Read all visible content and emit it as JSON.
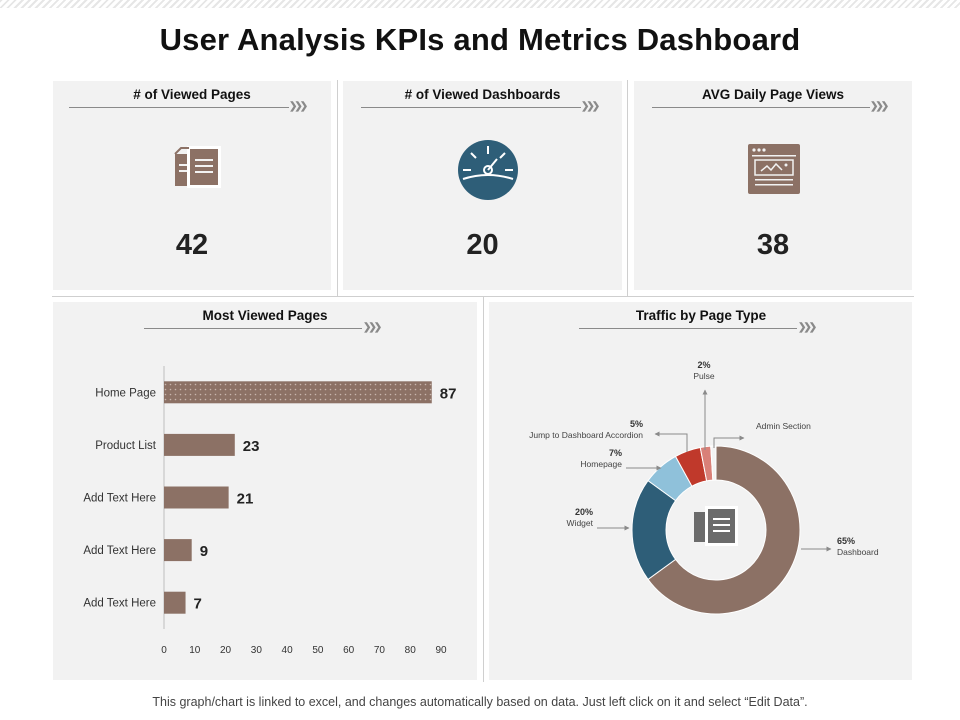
{
  "header": {
    "title": "User Analysis KPIs and Metrics Dashboard"
  },
  "kpis": [
    {
      "label": "# of Viewed Pages",
      "value": "42",
      "icon": "documents-icon"
    },
    {
      "label": "# of Viewed Dashboards",
      "value": "20",
      "icon": "speedometer-icon"
    },
    {
      "label": "AVG Daily Page Views",
      "value": "38",
      "icon": "browser-window-icon"
    }
  ],
  "panels": {
    "bar_title": "Most Viewed Pages",
    "pie_title": "Traffic by Page Type"
  },
  "colors": {
    "brown": "#8c7165",
    "teal": "#2e5e78",
    "lightblue": "#8fc1da",
    "red": "#c0392b",
    "salmon": "#d98078",
    "panel": "#f2f2f2"
  },
  "chart_data": [
    {
      "type": "bar",
      "orientation": "horizontal",
      "title": "Most Viewed Pages",
      "categories": [
        "Home Page",
        "Product List",
        "Add Text Here",
        "Add Text Here",
        "Add Text Here"
      ],
      "values": [
        87,
        23,
        21,
        9,
        7
      ],
      "xlim": [
        0,
        90
      ],
      "xticks": [
        0,
        10,
        20,
        30,
        40,
        50,
        60,
        70,
        80,
        90
      ],
      "xlabel": "",
      "ylabel": ""
    },
    {
      "type": "pie",
      "style": "donut",
      "title": "Traffic by Page Type",
      "slices": [
        {
          "label": "Dashboard",
          "value": 65,
          "display": "65%",
          "color": "#8c7165"
        },
        {
          "label": "Widget",
          "value": 20,
          "display": "20%",
          "color": "#2e5e78"
        },
        {
          "label": "Homepage",
          "value": 7,
          "display": "7%",
          "color": "#8fc1da"
        },
        {
          "label": "Jump to Dashboard Accordion",
          "value": 5,
          "display": "5%",
          "color": "#c0392b"
        },
        {
          "label": "Pulse",
          "value": 2,
          "display": "2%",
          "color": "#d98078"
        },
        {
          "label": "Admin Section",
          "value": 1,
          "display": "",
          "color": "#f3f3f3"
        }
      ],
      "center_icon": "documents-icon"
    }
  ],
  "footer": {
    "note": "This graph/chart is linked to excel, and changes automatically based on data. Just left click on it and select “Edit Data”."
  }
}
